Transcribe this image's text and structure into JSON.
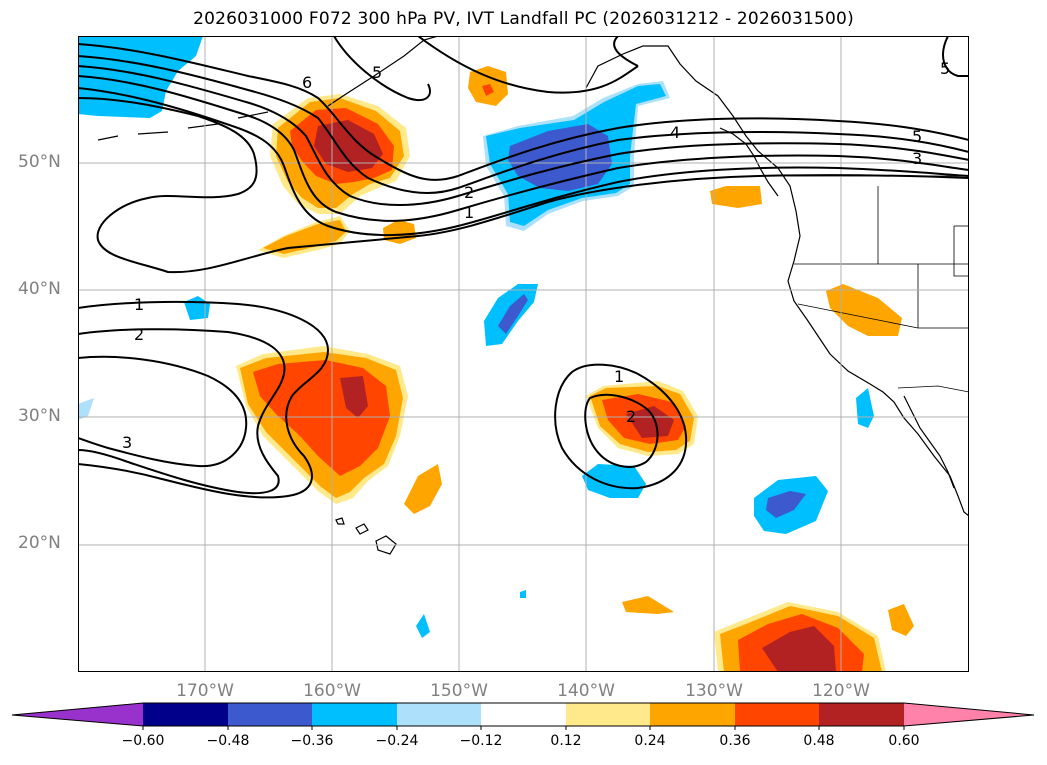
{
  "title": "2026031000 F072 300 hPa PV, IVT Landfall PC (2026031212 - 2026031500)",
  "lat_labels": [
    "50°N",
    "40°N",
    "30°N",
    "20°N"
  ],
  "lon_labels": [
    "170°W",
    "160°W",
    "150°W",
    "140°W",
    "130°W",
    "120°W"
  ],
  "colorbar": {
    "ticks": [
      "−0.60",
      "−0.48",
      "−0.36",
      "−0.24",
      "−0.12",
      "0.12",
      "0.24",
      "0.36",
      "0.48",
      "0.60"
    ],
    "colors": [
      "#9932cc",
      "#00008b",
      "#3c5acd",
      "#00bfff",
      "#ade0fa",
      "#ffffff",
      "#ffe98b",
      "#ffa500",
      "#ff4500",
      "#b22222",
      "#ff82ab"
    ]
  },
  "contour_labels": [
    "6",
    "5",
    "5",
    "4",
    "5",
    "3",
    "2",
    "1",
    "1",
    "2",
    "3",
    "1",
    "2"
  ],
  "colors": {
    "grid": "#b0b0b0",
    "tick_text": "#808080"
  }
}
